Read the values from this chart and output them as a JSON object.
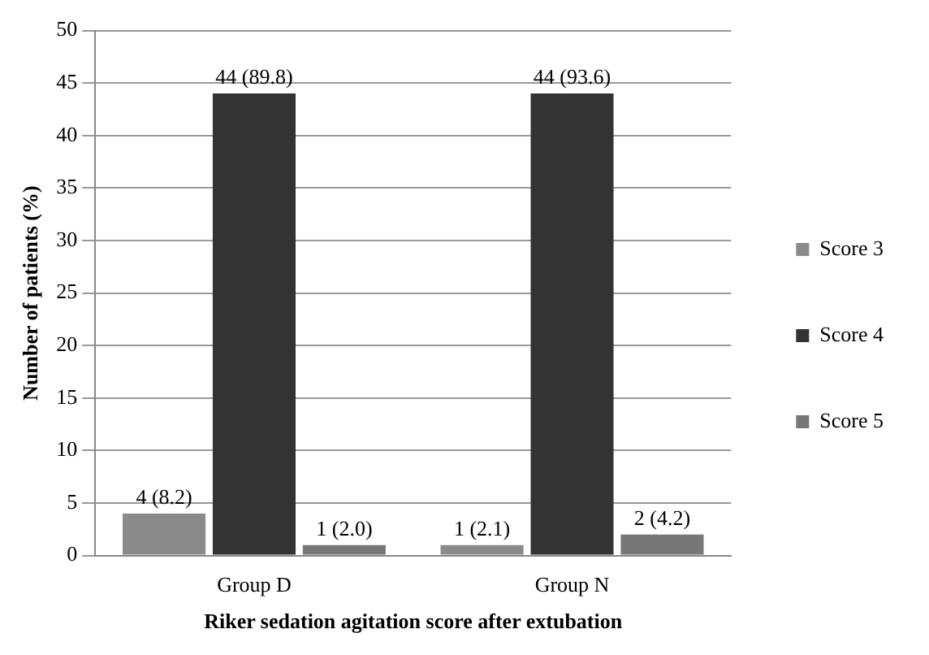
{
  "chart_data": {
    "type": "bar",
    "xlabel": "Riker sedation agitation score after extubation",
    "ylabel": "Number of patients (%)",
    "categories": [
      "Group D",
      "Group N"
    ],
    "series": [
      {
        "name": "Score 3",
        "color": "#8a8a8a",
        "values": [
          4,
          1
        ],
        "value_labels": [
          "4 (8.2)",
          "1 (2.1)"
        ]
      },
      {
        "name": "Score 4",
        "color": "#333333",
        "values": [
          44,
          44
        ],
        "value_labels": [
          "44 (89.8)",
          "44 (93.6)"
        ]
      },
      {
        "name": "Score 5",
        "color": "#777777",
        "values": [
          1,
          2
        ],
        "value_labels": [
          "1 (2.0)",
          "2 (4.2)"
        ]
      }
    ],
    "ylim": [
      0,
      50
    ],
    "yticks": [
      0,
      5,
      10,
      15,
      20,
      25,
      30,
      35,
      40,
      45,
      50
    ],
    "grid": "y",
    "legend": "right"
  }
}
